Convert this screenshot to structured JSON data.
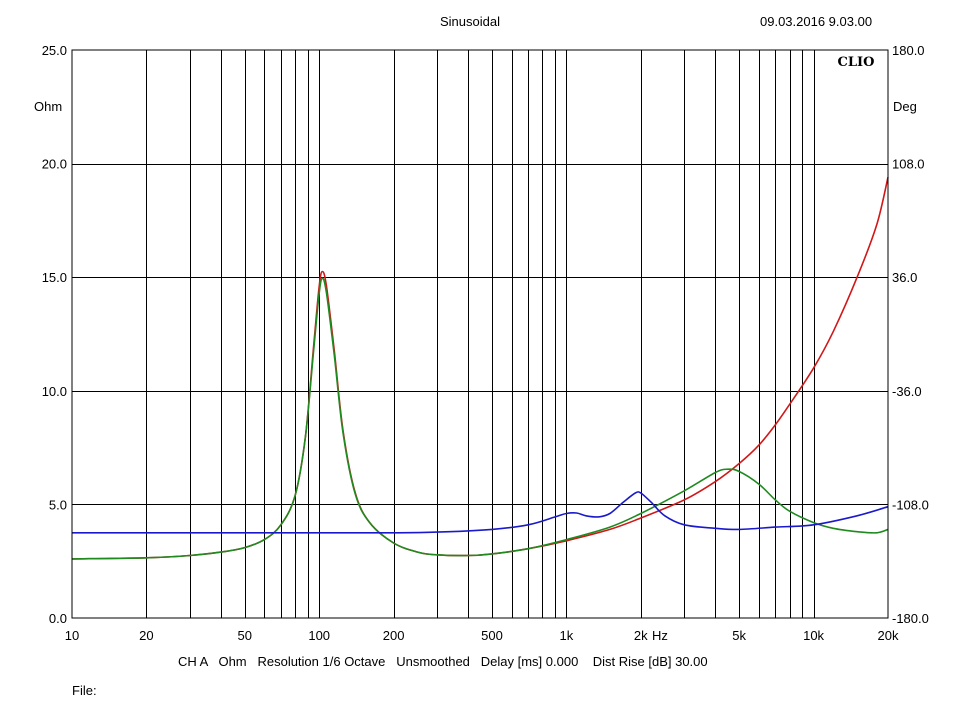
{
  "header": {
    "title": "Sinusoidal",
    "timestamp": "09.03.2016 9.03.00",
    "brand": "CLIO"
  },
  "footer": {
    "settings": "CH A   Ohm   Resolution 1/6 Octave   Unsmoothed   Delay [ms] 0.000    Dist Rise [dB] 30.00",
    "file_label": "File:"
  },
  "chart_data": {
    "type": "line",
    "x_scale": "log",
    "xlim": [
      10,
      20000
    ],
    "ylim_left": [
      0,
      25
    ],
    "ylim_right": [
      -180,
      180
    ],
    "ylabel_left": "Ohm",
    "ylabel_right": "Deg",
    "x_unit": "Hz",
    "grid": true,
    "x_ticks": [
      {
        "value": 10,
        "label": "10"
      },
      {
        "value": 20,
        "label": "20"
      },
      {
        "value": 50,
        "label": "50"
      },
      {
        "value": 100,
        "label": "100"
      },
      {
        "value": 200,
        "label": "200"
      },
      {
        "value": 500,
        "label": "500"
      },
      {
        "value": 1000,
        "label": "1k"
      },
      {
        "value": 2000,
        "label": "2k"
      },
      {
        "value": 5000,
        "label": "5k"
      },
      {
        "value": 10000,
        "label": "10k"
      },
      {
        "value": 20000,
        "label": "20k"
      }
    ],
    "y_ticks_left": [
      "0.0",
      "5.0",
      "10.0",
      "15.0",
      "20.0",
      "25.0"
    ],
    "y_ticks_right": [
      "-180.0",
      "-108.0",
      "-36.0",
      "36.0",
      "108.0",
      "180.0"
    ],
    "series": [
      {
        "color": "#d01818",
        "points": [
          [
            10,
            2.6
          ],
          [
            20,
            2.65
          ],
          [
            30,
            2.75
          ],
          [
            40,
            2.9
          ],
          [
            50,
            3.1
          ],
          [
            60,
            3.45
          ],
          [
            70,
            4.1
          ],
          [
            80,
            5.4
          ],
          [
            88,
            8.0
          ],
          [
            95,
            12.0
          ],
          [
            100,
            14.6
          ],
          [
            103,
            15.25
          ],
          [
            107,
            14.6
          ],
          [
            115,
            11.8
          ],
          [
            125,
            8.2
          ],
          [
            140,
            5.5
          ],
          [
            160,
            4.2
          ],
          [
            200,
            3.3
          ],
          [
            250,
            2.9
          ],
          [
            300,
            2.78
          ],
          [
            400,
            2.75
          ],
          [
            500,
            2.82
          ],
          [
            700,
            3.05
          ],
          [
            1000,
            3.4
          ],
          [
            1500,
            3.9
          ],
          [
            2000,
            4.4
          ],
          [
            3000,
            5.2
          ],
          [
            4000,
            6.0
          ],
          [
            5000,
            6.8
          ],
          [
            6000,
            7.6
          ],
          [
            7000,
            8.5
          ],
          [
            8000,
            9.4
          ],
          [
            10000,
            11.0
          ],
          [
            12000,
            12.6
          ],
          [
            15000,
            15.0
          ],
          [
            18000,
            17.3
          ],
          [
            20000,
            19.4
          ]
        ]
      },
      {
        "color": "#1f8a1f",
        "points": [
          [
            10,
            2.6
          ],
          [
            20,
            2.65
          ],
          [
            30,
            2.75
          ],
          [
            40,
            2.9
          ],
          [
            50,
            3.1
          ],
          [
            60,
            3.45
          ],
          [
            70,
            4.1
          ],
          [
            80,
            5.4
          ],
          [
            88,
            8.0
          ],
          [
            95,
            11.8
          ],
          [
            100,
            14.3
          ],
          [
            103,
            14.95
          ],
          [
            107,
            14.3
          ],
          [
            115,
            11.6
          ],
          [
            125,
            8.1
          ],
          [
            140,
            5.45
          ],
          [
            160,
            4.2
          ],
          [
            200,
            3.3
          ],
          [
            250,
            2.9
          ],
          [
            300,
            2.78
          ],
          [
            400,
            2.75
          ],
          [
            500,
            2.82
          ],
          [
            700,
            3.05
          ],
          [
            1000,
            3.45
          ],
          [
            1500,
            4.0
          ],
          [
            2000,
            4.6
          ],
          [
            3000,
            5.6
          ],
          [
            4000,
            6.4
          ],
          [
            4500,
            6.55
          ],
          [
            5000,
            6.45
          ],
          [
            6000,
            5.9
          ],
          [
            7000,
            5.2
          ],
          [
            8000,
            4.7
          ],
          [
            10000,
            4.2
          ],
          [
            12000,
            3.95
          ],
          [
            15000,
            3.8
          ],
          [
            18000,
            3.75
          ],
          [
            20000,
            3.9
          ]
        ]
      },
      {
        "color": "#1a1acc",
        "points": [
          [
            10,
            3.75
          ],
          [
            20,
            3.75
          ],
          [
            50,
            3.75
          ],
          [
            100,
            3.75
          ],
          [
            200,
            3.75
          ],
          [
            300,
            3.78
          ],
          [
            500,
            3.9
          ],
          [
            700,
            4.1
          ],
          [
            900,
            4.45
          ],
          [
            1000,
            4.6
          ],
          [
            1100,
            4.62
          ],
          [
            1200,
            4.5
          ],
          [
            1350,
            4.45
          ],
          [
            1500,
            4.6
          ],
          [
            1700,
            5.1
          ],
          [
            1900,
            5.5
          ],
          [
            2000,
            5.5
          ],
          [
            2200,
            5.1
          ],
          [
            2500,
            4.5
          ],
          [
            3000,
            4.1
          ],
          [
            4000,
            3.95
          ],
          [
            5000,
            3.9
          ],
          [
            7000,
            4.0
          ],
          [
            10000,
            4.1
          ],
          [
            15000,
            4.5
          ],
          [
            20000,
            4.9
          ]
        ]
      }
    ]
  }
}
